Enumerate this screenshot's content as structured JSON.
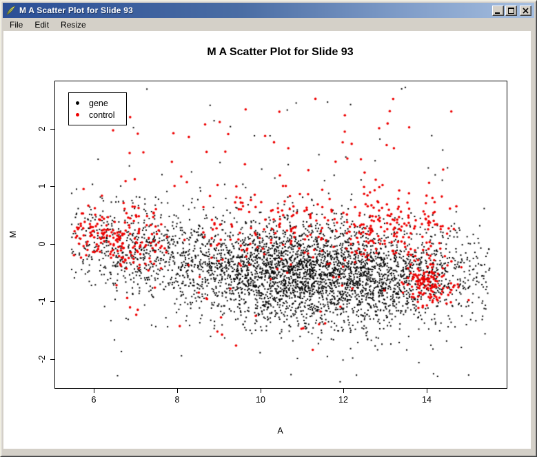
{
  "window": {
    "title": "M A Scatter Plot for Slide 93",
    "icon": "feather-icon",
    "controls": {
      "minimize": "minimize-icon",
      "maximize": "maximize-icon",
      "close": "close-icon"
    },
    "menu": [
      {
        "label": "File"
      },
      {
        "label": "Edit"
      },
      {
        "label": "Resize"
      }
    ]
  },
  "colors": {
    "titlebar_left": "#2b4f96",
    "titlebar_right": "#a6bfe0",
    "chrome": "#d4d0c8",
    "canvas": "#ffffff",
    "gene": "#000000",
    "control": "#ee0000"
  },
  "chart_data": {
    "type": "scatter",
    "title": "M A Scatter Plot for Slide 93",
    "xlabel": "A",
    "ylabel": "M",
    "xlim": [
      5.06,
      15.93
    ],
    "ylim": [
      -2.49,
      2.84
    ],
    "x_ticks": [
      6,
      8,
      10,
      12,
      14
    ],
    "y_ticks": [
      2,
      1,
      0,
      -1,
      -2
    ],
    "grid": false,
    "legend": {
      "position": "top-left",
      "entries": [
        {
          "label": "gene",
          "color": "#000000"
        },
        {
          "label": "control",
          "color": "#ee0000"
        }
      ]
    },
    "seed": 42,
    "series": [
      {
        "name": "gene",
        "color": "#000000",
        "marker": "square",
        "marker_px": 2,
        "clusters": [
          {
            "n": 3800,
            "a": {
              "dist": "normal",
              "mean": 11.3,
              "sd": 2.05,
              "min": 5.45,
              "max": 15.55
            },
            "m": {
              "dist": "band",
              "base": -0.55,
              "amp": 0.62,
              "center": 5.2,
              "width": 3.2,
              "sd": 0.44,
              "tail_frac": 0.06,
              "tail_sd": 0.85
            }
          },
          {
            "n": 350,
            "a": {
              "dist": "normal",
              "mean": 6.8,
              "sd": 0.9,
              "min": 5.45,
              "max": 9.5
            },
            "m": {
              "dist": "band",
              "base": -0.55,
              "amp": 0.62,
              "center": 5.2,
              "width": 3.2,
              "sd": 0.38,
              "tail_frac": 0.05,
              "tail_sd": 0.7
            }
          },
          {
            "n": 55,
            "a": {
              "dist": "uniform",
              "min": 5.8,
              "max": 15.2
            },
            "m": {
              "dist": "uniform",
              "min": -2.35,
              "max": 2.75
            }
          }
        ]
      },
      {
        "name": "control",
        "color": "#ee0000",
        "marker": "circle",
        "marker_px": 3.6,
        "clusters": [
          {
            "n": 190,
            "a": {
              "dist": "normal",
              "mean": 6.5,
              "sd": 0.75,
              "min": 5.5,
              "max": 9.0
            },
            "m": {
              "dist": "normal",
              "mean": 0.12,
              "sd": 0.32
            }
          },
          {
            "n": 150,
            "a": {
              "dist": "normal",
              "mean": 10.6,
              "sd": 1.4,
              "min": 8.5,
              "max": 13.0
            },
            "m": {
              "dist": "normal",
              "mean": 0.28,
              "sd": 0.38
            }
          },
          {
            "n": 170,
            "a": {
              "dist": "normal",
              "mean": 13.2,
              "sd": 0.75,
              "min": 12.0,
              "max": 14.8
            },
            "m": {
              "dist": "normal",
              "mean": 0.3,
              "sd": 0.33
            }
          },
          {
            "n": 130,
            "a": {
              "dist": "normal",
              "mean": 14.08,
              "sd": 0.28,
              "min": 13.3,
              "max": 15.2
            },
            "m": {
              "dist": "normal",
              "mean": -0.66,
              "sd": 0.2
            }
          },
          {
            "n": 45,
            "a": {
              "dist": "uniform",
              "min": 6.2,
              "max": 14.6
            },
            "m": {
              "dist": "uniform",
              "min": 0.95,
              "max": 2.55
            }
          },
          {
            "n": 25,
            "a": {
              "dist": "normal",
              "mean": 9.5,
              "sd": 2.5,
              "min": 5.6,
              "max": 14.5
            },
            "m": {
              "dist": "normal",
              "mean": -1.15,
              "sd": 0.3
            }
          }
        ]
      }
    ]
  }
}
